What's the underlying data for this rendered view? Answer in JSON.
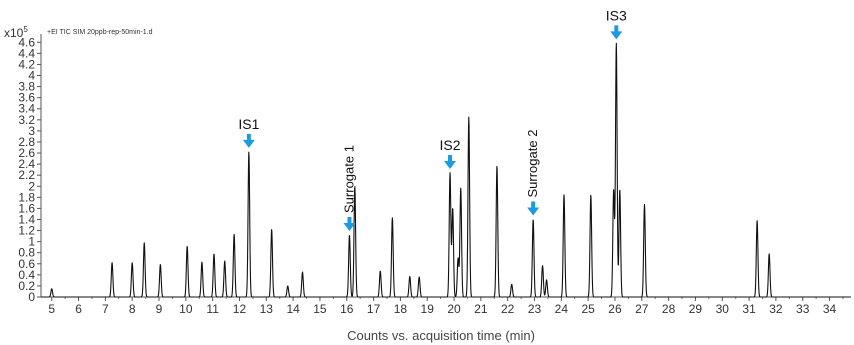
{
  "chart_data": {
    "type": "line",
    "title": "",
    "subtitle": "+EI TIC SIM 20ppb-rep-50min-1.d",
    "y_multiplier": "x10",
    "y_multiplier_exp": "5",
    "xlabel": "Counts vs. acquisition time (min)",
    "ylabel": "",
    "xlim": [
      4.6,
      34.8
    ],
    "ylim": [
      0,
      4.75
    ],
    "x_ticks": [
      "5",
      "6",
      "7",
      "8",
      "9",
      "10",
      "11",
      "12",
      "13",
      "14",
      "15",
      "16",
      "17",
      "18",
      "19",
      "20",
      "21",
      "22",
      "23",
      "24",
      "25",
      "26",
      "27",
      "28",
      "29",
      "30",
      "31",
      "32",
      "33",
      "34"
    ],
    "y_ticks": [
      "0",
      "0.2",
      "0.4",
      "0.6",
      "0.8",
      "1",
      "1.2",
      "1.4",
      "1.6",
      "1.8",
      "2",
      "2.2",
      "2.4",
      "2.6",
      "2.8",
      "3",
      "3.2",
      "3.4",
      "3.6",
      "3.8",
      "4",
      "4.2",
      "4.4",
      "4.6"
    ],
    "grid": false,
    "line_color": "#111111",
    "arrow_color": "#1e9be0",
    "peaks": [
      {
        "x": 5.0,
        "y": 0.15
      },
      {
        "x": 7.25,
        "y": 0.62
      },
      {
        "x": 8.0,
        "y": 0.62
      },
      {
        "x": 8.45,
        "y": 0.98
      },
      {
        "x": 9.05,
        "y": 0.59
      },
      {
        "x": 10.05,
        "y": 0.92
      },
      {
        "x": 10.6,
        "y": 0.63
      },
      {
        "x": 11.05,
        "y": 0.78
      },
      {
        "x": 11.45,
        "y": 0.65
      },
      {
        "x": 11.8,
        "y": 1.13
      },
      {
        "x": 12.35,
        "y": 2.62
      },
      {
        "x": 13.2,
        "y": 1.22
      },
      {
        "x": 13.8,
        "y": 0.2
      },
      {
        "x": 14.35,
        "y": 0.45
      },
      {
        "x": 16.1,
        "y": 1.12
      },
      {
        "x": 16.3,
        "y": 2.0
      },
      {
        "x": 17.25,
        "y": 0.47
      },
      {
        "x": 17.7,
        "y": 1.43
      },
      {
        "x": 18.35,
        "y": 0.37
      },
      {
        "x": 18.7,
        "y": 0.36
      },
      {
        "x": 19.85,
        "y": 2.24
      },
      {
        "x": 19.95,
        "y": 1.6
      },
      {
        "x": 20.15,
        "y": 0.7
      },
      {
        "x": 20.25,
        "y": 1.97
      },
      {
        "x": 20.55,
        "y": 3.25
      },
      {
        "x": 21.6,
        "y": 2.37
      },
      {
        "x": 22.15,
        "y": 0.23
      },
      {
        "x": 22.95,
        "y": 1.4
      },
      {
        "x": 23.3,
        "y": 0.57
      },
      {
        "x": 23.45,
        "y": 0.31
      },
      {
        "x": 24.1,
        "y": 1.85
      },
      {
        "x": 25.1,
        "y": 1.84
      },
      {
        "x": 25.95,
        "y": 1.93
      },
      {
        "x": 26.05,
        "y": 4.58
      },
      {
        "x": 26.18,
        "y": 1.94
      },
      {
        "x": 27.1,
        "y": 1.67
      },
      {
        "x": 31.3,
        "y": 1.38
      },
      {
        "x": 31.75,
        "y": 0.78
      }
    ],
    "annotations": [
      {
        "text": "IS1",
        "x": 12.35,
        "y": 2.62,
        "arrow": true,
        "rotated": false
      },
      {
        "text": "Surrogate 1",
        "x": 16.1,
        "y": 1.12,
        "arrow": true,
        "rotated": true
      },
      {
        "text": "IS2",
        "x": 19.85,
        "y": 2.24,
        "arrow": true,
        "rotated": false
      },
      {
        "text": "Surrogate 2",
        "x": 22.95,
        "y": 1.4,
        "arrow": true,
        "rotated": true
      },
      {
        "text": "IS3",
        "x": 26.05,
        "y": 4.58,
        "arrow": true,
        "rotated": false
      }
    ]
  }
}
